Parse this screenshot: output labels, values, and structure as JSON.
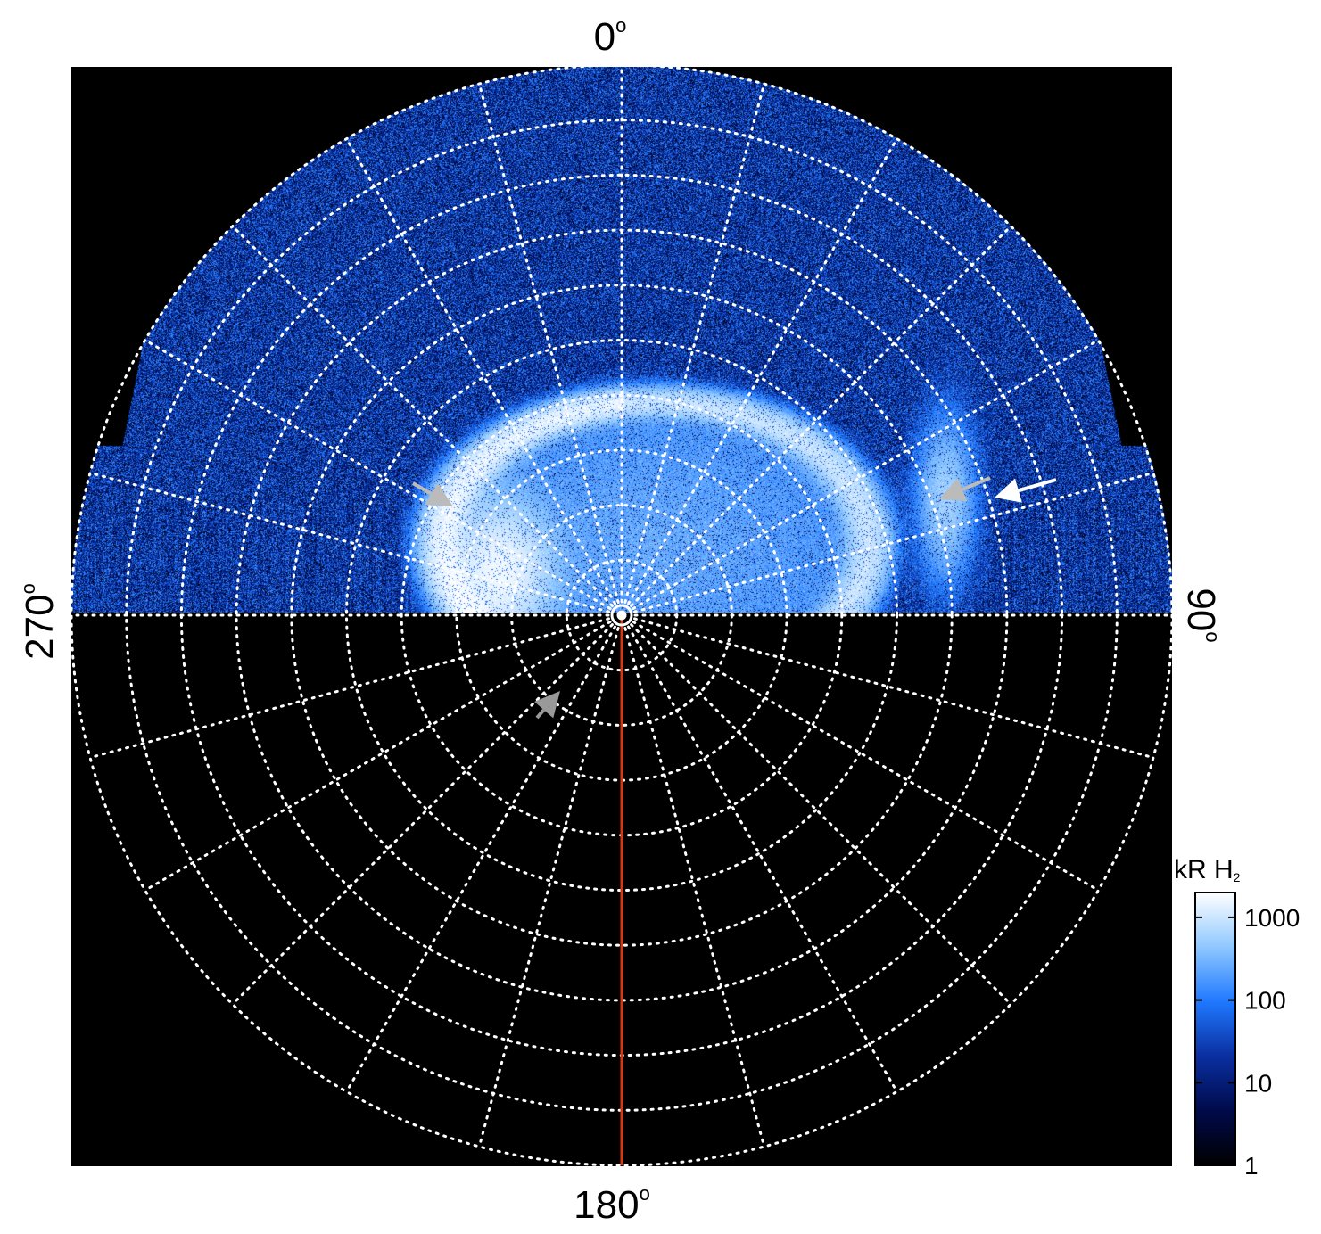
{
  "chart_data": {
    "type": "heatmap",
    "projection": "polar",
    "axis_labels": {
      "top": "0",
      "right": "90",
      "bottom": "180",
      "left": "270",
      "degree_symbol": "o"
    },
    "colorbar": {
      "title_main": "kR H",
      "title_sub": "2",
      "scale": "log",
      "range": [
        1,
        2000
      ],
      "ticks": [
        {
          "value": 1,
          "label": "1"
        },
        {
          "value": 10,
          "label": "10"
        },
        {
          "value": 100,
          "label": "100"
        },
        {
          "value": 1000,
          "label": "1000"
        }
      ],
      "colors": [
        "#000000",
        "#000a4a",
        "#0a2fa0",
        "#1f78ff",
        "#8fc8ff",
        "#ffffff"
      ]
    },
    "grid": {
      "style": "dotted",
      "color": "#ffffff",
      "latitude_circles": 10,
      "meridian_spacing_deg": 15
    },
    "features": {
      "auroral_oval": {
        "centre_lon_deg": 205,
        "colatitude_deg": 14,
        "peak_kR": 1000
      },
      "polar_emission_kR": 300,
      "background_kR": 30,
      "outer_arc": {
        "centre_lon_deg": 78,
        "colatitude_deg": 28,
        "peak_kR": 600
      },
      "noon_meridian_lon_deg": 180,
      "noon_meridian_color": "#d23a12",
      "arrows": [
        {
          "color": "#bbbbbb",
          "direction": "down-right"
        },
        {
          "color": "#bbbbbb",
          "direction": "down-left"
        },
        {
          "color": "#ffffff",
          "direction": "left"
        },
        {
          "color": "#999999",
          "direction": "up-right"
        }
      ]
    }
  }
}
